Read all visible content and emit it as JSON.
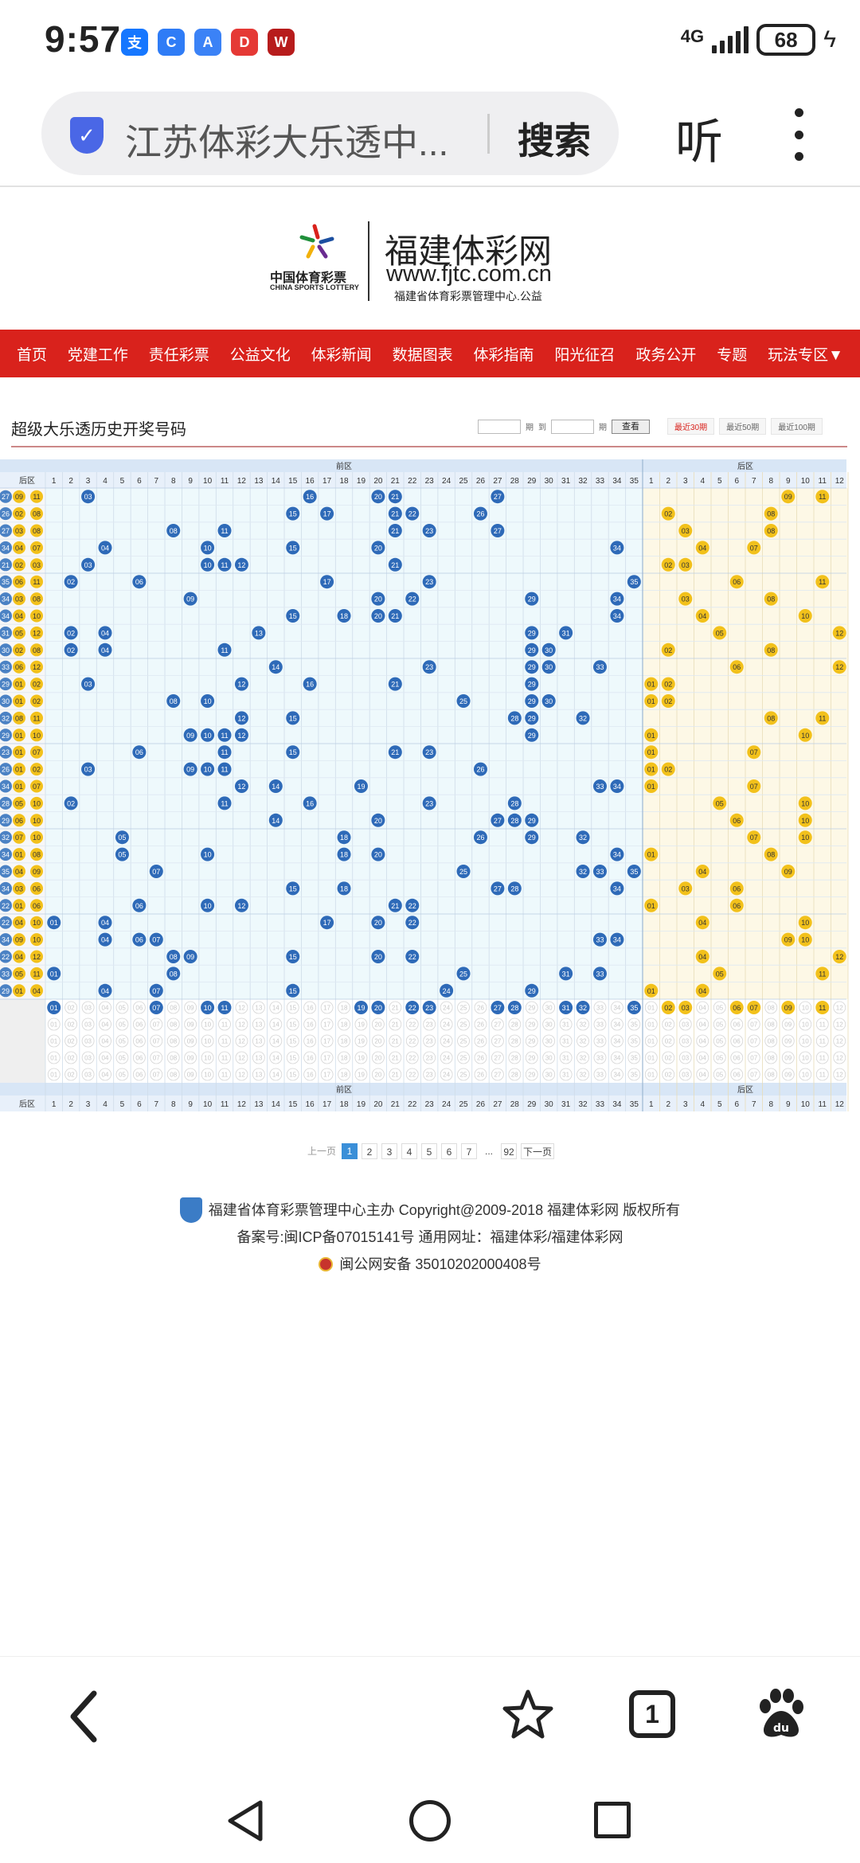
{
  "status_bar": {
    "time": "9:57",
    "network": "4G",
    "battery": "68",
    "apps": [
      {
        "name": "alipay-icon",
        "label": "支",
        "color": "#1677ff"
      },
      {
        "name": "chat-icon",
        "label": "C",
        "color": "#2f7cf6"
      },
      {
        "name": "cloud-icon",
        "label": "A",
        "color": "#3b82f6"
      },
      {
        "name": "news-icon",
        "label": "D",
        "color": "#e53935"
      },
      {
        "name": "video-icon",
        "label": "W",
        "color": "#b71c1c"
      }
    ]
  },
  "browser": {
    "url": "江苏体彩大乐透中...",
    "search_label": "搜索",
    "listen_label": "听",
    "tab_count": "1"
  },
  "site": {
    "logo_cn": "中国体育彩票",
    "logo_en": "CHINA SPORTS LOTTERY",
    "name": "福建体彩网",
    "url": "www.fjtc.com.cn",
    "slogan": "福建省体育彩票管理中心.公益"
  },
  "nav": [
    "首页",
    "党建工作",
    "责任彩票",
    "公益文化",
    "体彩新闻",
    "数据图表",
    "体彩指南",
    "阳光征召",
    "政务公开",
    "专题",
    "玩法专区▼"
  ],
  "toolbar": {
    "title": "超级大乐透历史开奖号码",
    "period_label": "期",
    "to_label": "到",
    "query_button": "查看",
    "ranges": [
      "最近30期",
      "最近50期",
      "最近100期"
    ]
  },
  "chart_data": {
    "type": "table",
    "title": "超级大乐透历史开奖号码",
    "front_zone_label": "前区",
    "back_zone_label": "后区",
    "left_header": "后区",
    "front_columns": [
      1,
      2,
      3,
      4,
      5,
      6,
      7,
      8,
      9,
      10,
      11,
      12,
      13,
      14,
      15,
      16,
      17,
      18,
      19,
      20,
      21,
      22,
      23,
      24,
      25,
      26,
      27,
      28,
      29,
      30,
      31,
      32,
      33,
      34,
      35
    ],
    "back_columns": [
      1,
      2,
      3,
      4,
      5,
      6,
      7,
      8,
      9,
      10,
      11,
      12
    ],
    "draws": [
      {
        "left": [
          "27",
          "09",
          "11"
        ],
        "front": [
          3,
          16,
          20,
          21,
          27
        ],
        "back": [
          9,
          11
        ]
      },
      {
        "left": [
          "26",
          "02",
          "08"
        ],
        "front": [
          15,
          17,
          21,
          22,
          26
        ],
        "back": [
          2,
          8
        ]
      },
      {
        "left": [
          "27",
          "03",
          "08"
        ],
        "front": [
          8,
          11,
          21,
          23,
          27
        ],
        "back": [
          3,
          8
        ]
      },
      {
        "left": [
          "34",
          "04",
          "07"
        ],
        "front": [
          4,
          10,
          15,
          20,
          34
        ],
        "back": [
          4,
          7
        ]
      },
      {
        "left": [
          "21",
          "02",
          "03"
        ],
        "front": [
          3,
          10,
          11,
          12,
          21
        ],
        "back": [
          2,
          3
        ]
      },
      {
        "left": [
          "35",
          "06",
          "11"
        ],
        "front": [
          2,
          6,
          17,
          23,
          35
        ],
        "back": [
          6,
          11
        ]
      },
      {
        "left": [
          "34",
          "03",
          "08"
        ],
        "front": [
          9,
          20,
          22,
          29,
          34
        ],
        "back": [
          3,
          8
        ]
      },
      {
        "left": [
          "34",
          "04",
          "10"
        ],
        "front": [
          15,
          18,
          20,
          21,
          34
        ],
        "back": [
          4,
          10
        ]
      },
      {
        "left": [
          "31",
          "05",
          "12"
        ],
        "front": [
          2,
          4,
          13,
          29,
          31
        ],
        "back": [
          5,
          12
        ]
      },
      {
        "left": [
          "30",
          "02",
          "08"
        ],
        "front": [
          2,
          4,
          11,
          29,
          30
        ],
        "back": [
          2,
          8
        ]
      },
      {
        "left": [
          "33",
          "06",
          "12"
        ],
        "front": [
          14,
          23,
          29,
          30,
          33
        ],
        "back": [
          6,
          12
        ]
      },
      {
        "left": [
          "29",
          "01",
          "02"
        ],
        "front": [
          3,
          12,
          16,
          21,
          29
        ],
        "back": [
          1,
          2
        ]
      },
      {
        "left": [
          "30",
          "01",
          "02"
        ],
        "front": [
          8,
          10,
          25,
          29,
          30
        ],
        "back": [
          1,
          2
        ]
      },
      {
        "left": [
          "32",
          "08",
          "11"
        ],
        "front": [
          12,
          15,
          28,
          29,
          32
        ],
        "back": [
          8,
          11
        ]
      },
      {
        "left": [
          "29",
          "01",
          "10"
        ],
        "front": [
          9,
          10,
          11,
          12,
          29
        ],
        "back": [
          1,
          10
        ]
      },
      {
        "left": [
          "23",
          "01",
          "07"
        ],
        "front": [
          6,
          11,
          15,
          21,
          23
        ],
        "back": [
          1,
          7
        ]
      },
      {
        "left": [
          "26",
          "01",
          "02"
        ],
        "front": [
          3,
          9,
          10,
          11,
          26
        ],
        "back": [
          1,
          2
        ]
      },
      {
        "left": [
          "34",
          "01",
          "07"
        ],
        "front": [
          12,
          14,
          19,
          33,
          34
        ],
        "back": [
          1,
          7
        ]
      },
      {
        "left": [
          "28",
          "05",
          "10"
        ],
        "front": [
          2,
          11,
          16,
          23,
          28
        ],
        "back": [
          5,
          10
        ]
      },
      {
        "left": [
          "29",
          "06",
          "10"
        ],
        "front": [
          14,
          20,
          27,
          28,
          29
        ],
        "back": [
          6,
          10
        ]
      },
      {
        "left": [
          "32",
          "07",
          "10"
        ],
        "front": [
          5,
          18,
          26,
          29,
          32
        ],
        "back": [
          7,
          10
        ]
      },
      {
        "left": [
          "34",
          "01",
          "08"
        ],
        "front": [
          5,
          10,
          18,
          20,
          34
        ],
        "back": [
          1,
          8
        ]
      },
      {
        "left": [
          "35",
          "04",
          "09"
        ],
        "front": [
          7,
          25,
          32,
          33,
          35
        ],
        "back": [
          4,
          9
        ]
      },
      {
        "left": [
          "34",
          "03",
          "06"
        ],
        "front": [
          15,
          18,
          27,
          28,
          34
        ],
        "back": [
          3,
          6
        ]
      },
      {
        "left": [
          "22",
          "01",
          "06"
        ],
        "front": [
          6,
          10,
          12,
          21,
          22
        ],
        "back": [
          1,
          6
        ]
      },
      {
        "left": [
          "22",
          "04",
          "10"
        ],
        "front": [
          1,
          4,
          17,
          20,
          22
        ],
        "back": [
          4,
          10
        ]
      },
      {
        "left": [
          "34",
          "09",
          "10"
        ],
        "front": [
          4,
          6,
          7,
          33,
          34
        ],
        "back": [
          9,
          10
        ]
      },
      {
        "left": [
          "22",
          "04",
          "12"
        ],
        "front": [
          8,
          9,
          15,
          20,
          22
        ],
        "back": [
          4,
          12
        ]
      },
      {
        "left": [
          "33",
          "05",
          "11"
        ],
        "front": [
          1,
          8,
          25,
          31,
          33
        ],
        "back": [
          5,
          11
        ]
      },
      {
        "left": [
          "29",
          "01",
          "04"
        ],
        "front": [
          4,
          7,
          15,
          24,
          29
        ],
        "back": [
          1,
          4
        ]
      }
    ],
    "summary_front": [
      1,
      7,
      10,
      11,
      19,
      20,
      22,
      23,
      27,
      28,
      31,
      32,
      35
    ],
    "summary_back": [
      2,
      3,
      6,
      7,
      9,
      11
    ]
  },
  "pagination": {
    "prev": "上一页",
    "pages": [
      "1",
      "2",
      "3",
      "4",
      "5",
      "6",
      "7"
    ],
    "ellipsis": "...",
    "last": "92",
    "next": "下一页"
  },
  "footer": {
    "line1": "福建省体育彩票管理中心主办 Copyright@2009-2018 福建体彩网 版权所有",
    "line2": "备案号:闽ICP备07015141号   通用网址：福建体彩/福建体彩网",
    "line3": "闽公网安备 35010202000408号"
  },
  "colors": {
    "nav_red": "#d9221c",
    "front_bg": "#eef9fc",
    "back_bg": "#fdf8e6",
    "ball_blue": "#2e6ab8",
    "ball_gold": "#f2c11b",
    "header_blue": "#d8e6f6"
  }
}
